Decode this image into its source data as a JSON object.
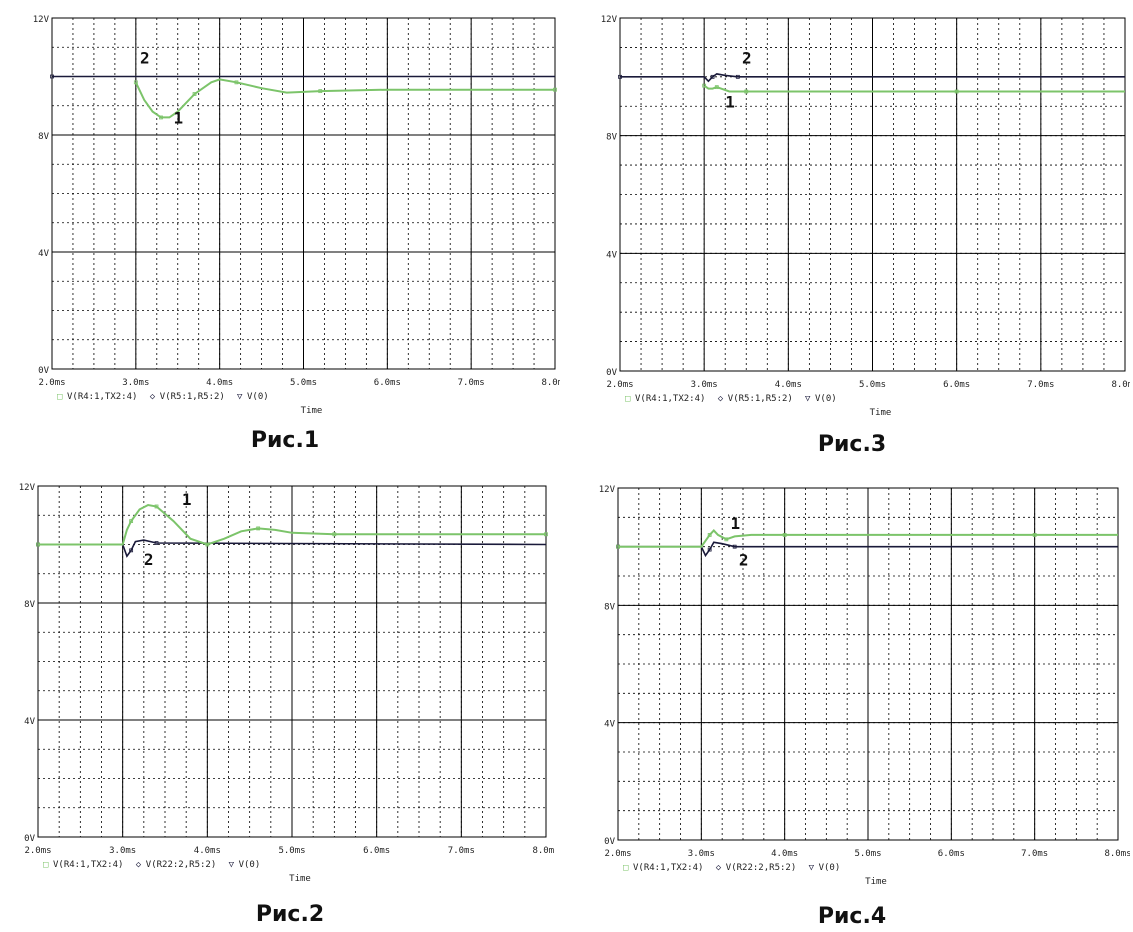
{
  "colors": {
    "trace1": "#7cc46a",
    "trace2": "#1a1a3a",
    "grid_major": "#000000",
    "grid_minor": "#000000",
    "plot_bg": "#ffffff"
  },
  "chart_data": [
    {
      "type": "line",
      "caption": "Рис.1",
      "x_ticks": [
        "2.0ms",
        "3.0ms",
        "4.0ms",
        "5.0ms",
        "6.0ms",
        "7.0ms",
        "8.0ms"
      ],
      "y_ticks": [
        "0V",
        "4V",
        "8V",
        "12V"
      ],
      "xlim": [
        2.0,
        8.0
      ],
      "ylim": [
        0,
        12
      ],
      "xlabel": "Time",
      "legend": [
        "V(R4:1,TX2:4)",
        "V(R5:1,R5:2)",
        "V(0)"
      ],
      "legend_markers": [
        "□",
        "◇",
        "▽"
      ],
      "series": [
        {
          "name": "1",
          "x": [
            3.0,
            3.1,
            3.2,
            3.3,
            3.4,
            3.5,
            3.7,
            3.9,
            4.0,
            4.2,
            4.5,
            4.8,
            5.2,
            6.0,
            7.0,
            8.0
          ],
          "y": [
            9.8,
            9.2,
            8.8,
            8.6,
            8.6,
            8.8,
            9.4,
            9.8,
            9.9,
            9.8,
            9.6,
            9.45,
            9.5,
            9.55,
            9.55,
            9.55
          ]
        },
        {
          "name": "2",
          "x": [
            2.0,
            8.0
          ],
          "y": [
            10.0,
            10.0
          ]
        }
      ],
      "annotations": [
        {
          "text": "2",
          "x": 3.05,
          "y": 10.45
        },
        {
          "text": "1",
          "x": 3.45,
          "y": 8.4
        }
      ]
    },
    {
      "type": "line",
      "caption": "Рис.3",
      "x_ticks": [
        "2.0ms",
        "3.0ms",
        "4.0ms",
        "5.0ms",
        "6.0ms",
        "7.0ms",
        "8.0ms"
      ],
      "y_ticks": [
        "0V",
        "4V",
        "8V",
        "12V"
      ],
      "xlim": [
        2.0,
        8.0
      ],
      "ylim": [
        0,
        12
      ],
      "xlabel": "Time",
      "legend": [
        "V(R4:1,TX2:4)",
        "V(R5:1,R5:2)",
        "V(0)"
      ],
      "legend_markers": [
        "□",
        "◇",
        "▽"
      ],
      "series": [
        {
          "name": "1",
          "x": [
            3.0,
            3.05,
            3.1,
            3.15,
            3.2,
            3.3,
            3.5,
            4.0,
            5.0,
            6.0,
            7.0,
            8.0
          ],
          "y": [
            9.7,
            9.6,
            9.6,
            9.65,
            9.6,
            9.5,
            9.5,
            9.5,
            9.5,
            9.5,
            9.5,
            9.5
          ]
        },
        {
          "name": "2",
          "x": [
            2.0,
            3.0,
            3.05,
            3.1,
            3.15,
            3.25,
            3.4,
            8.0
          ],
          "y": [
            10.0,
            10.0,
            9.85,
            10.0,
            10.1,
            10.05,
            10.0,
            10.0
          ]
        }
      ],
      "annotations": [
        {
          "text": "2",
          "x": 3.45,
          "y": 10.45
        },
        {
          "text": "1",
          "x": 3.25,
          "y": 8.95
        }
      ]
    },
    {
      "type": "line",
      "caption": "Рис.2",
      "x_ticks": [
        "2.0ms",
        "3.0ms",
        "4.0ms",
        "5.0ms",
        "6.0ms",
        "7.0ms",
        "8.0ms"
      ],
      "y_ticks": [
        "0V",
        "4V",
        "8V",
        "12V"
      ],
      "xlim": [
        2.0,
        8.0
      ],
      "ylim": [
        0,
        12
      ],
      "xlabel": "Time",
      "legend": [
        "V(R4:1,TX2:4)",
        "V(R22:2,R5:2)",
        "V(0)"
      ],
      "legend_markers": [
        "□",
        "◇",
        "▽"
      ],
      "series": [
        {
          "name": "1",
          "x": [
            2.0,
            3.0,
            3.05,
            3.1,
            3.2,
            3.3,
            3.4,
            3.6,
            3.8,
            4.0,
            4.2,
            4.4,
            4.6,
            4.8,
            5.0,
            5.5,
            6.0,
            7.0,
            8.0
          ],
          "y": [
            10.0,
            10.0,
            10.5,
            10.8,
            11.2,
            11.35,
            11.3,
            10.8,
            10.2,
            10.0,
            10.2,
            10.45,
            10.55,
            10.5,
            10.4,
            10.35,
            10.35,
            10.35,
            10.35
          ]
        },
        {
          "name": "2",
          "x": [
            2.0,
            3.0,
            3.05,
            3.1,
            3.15,
            3.25,
            3.4,
            8.0
          ],
          "y": [
            10.0,
            10.0,
            9.6,
            9.8,
            10.1,
            10.15,
            10.05,
            10.0
          ]
        }
      ],
      "annotations": [
        {
          "text": "1",
          "x": 3.7,
          "y": 11.35
        },
        {
          "text": "2",
          "x": 3.25,
          "y": 9.3
        }
      ]
    },
    {
      "type": "line",
      "caption": "Рис.4",
      "x_ticks": [
        "2.0ms",
        "3.0ms",
        "4.0ms",
        "5.0ms",
        "6.0ms",
        "7.0ms",
        "8.0ms"
      ],
      "y_ticks": [
        "0V",
        "4V",
        "8V",
        "12V"
      ],
      "xlim": [
        2.0,
        8.0
      ],
      "ylim": [
        0,
        12
      ],
      "xlabel": "Time",
      "legend": [
        "V(R4:1,TX2:4)",
        "V(R22:2,R5:2)",
        "V(0)"
      ],
      "legend_markers": [
        "□",
        "◇",
        "▽"
      ],
      "series": [
        {
          "name": "1",
          "x": [
            2.0,
            3.0,
            3.05,
            3.1,
            3.15,
            3.2,
            3.3,
            3.4,
            3.6,
            4.0,
            5.0,
            6.0,
            7.0,
            8.0
          ],
          "y": [
            10.0,
            10.0,
            10.2,
            10.4,
            10.55,
            10.4,
            10.25,
            10.35,
            10.4,
            10.4,
            10.4,
            10.4,
            10.4,
            10.4
          ]
        },
        {
          "name": "2",
          "x": [
            2.0,
            3.0,
            3.05,
            3.1,
            3.15,
            3.25,
            3.4,
            8.0
          ],
          "y": [
            10.0,
            10.0,
            9.7,
            9.9,
            10.15,
            10.1,
            10.0,
            10.0
          ]
        }
      ],
      "annotations": [
        {
          "text": "1",
          "x": 3.35,
          "y": 10.6
        },
        {
          "text": "2",
          "x": 3.45,
          "y": 9.35
        }
      ]
    }
  ]
}
